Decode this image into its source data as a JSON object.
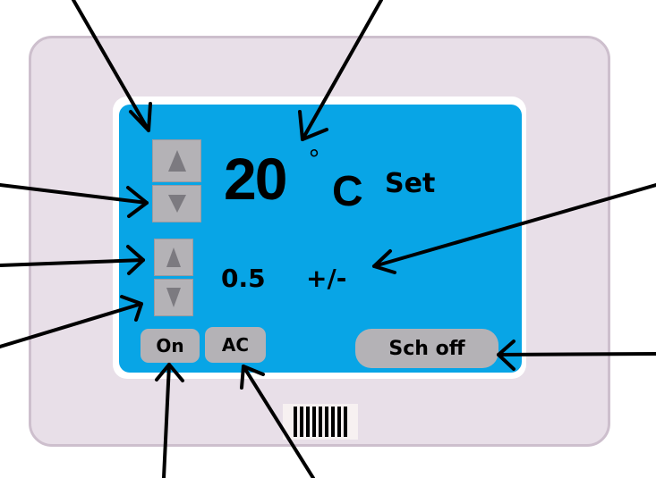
{
  "thermostat": {
    "set_temperature": "20",
    "degree_symbol": "°",
    "temperature_unit": "C",
    "set_label": "Set",
    "differential_value": "0.5",
    "differential_unit": "+/-",
    "power_label": "On",
    "mode_label": "AC",
    "schedule_label": "Sch off"
  },
  "colors": {
    "screen": "#08a5e6",
    "device_body": "#e8dfe8",
    "button_gray": "#b4b2b6"
  },
  "icons": {
    "temp_up": "triangle-up-icon",
    "temp_down": "triangle-down-icon",
    "diff_up": "triangle-up-icon",
    "diff_down": "triangle-down-icon"
  }
}
